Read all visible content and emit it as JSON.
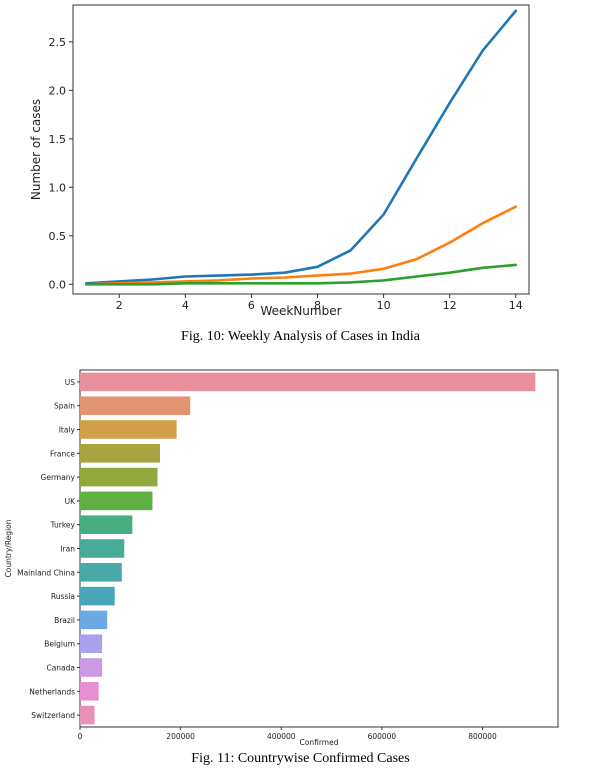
{
  "figures": [
    {
      "caption": "Fig. 10: Weekly Analysis of Cases in India"
    },
    {
      "caption": "Fig. 11: Countrywise Confirmed Cases"
    }
  ],
  "chart_data": [
    {
      "type": "line",
      "xlabel": "WeekNumber",
      "ylabel": "Number of cases",
      "x": [
        1,
        2,
        3,
        4,
        5,
        6,
        7,
        8,
        9,
        10,
        11,
        12,
        13,
        14
      ],
      "xlim": [
        0.6,
        14.4
      ],
      "ylim": [
        -0.1,
        2.88
      ],
      "xticks": [
        2,
        4,
        6,
        8,
        10,
        12,
        14
      ],
      "yticks": [
        0.0,
        0.5,
        1.0,
        1.5,
        2.0,
        2.5
      ],
      "grid": false,
      "series": [
        {
          "color": "#1f77b4",
          "values": [
            0.01,
            0.03,
            0.05,
            0.08,
            0.09,
            0.1,
            0.12,
            0.18,
            0.35,
            0.72,
            1.3,
            1.87,
            2.41,
            2.82
          ]
        },
        {
          "color": "#ff7f0e",
          "values": [
            0.0,
            0.01,
            0.02,
            0.03,
            0.04,
            0.06,
            0.07,
            0.09,
            0.11,
            0.16,
            0.26,
            0.43,
            0.63,
            0.8
          ]
        },
        {
          "color": "#2ca02c",
          "values": [
            0.0,
            0.0,
            0.0,
            0.01,
            0.01,
            0.01,
            0.01,
            0.01,
            0.02,
            0.04,
            0.08,
            0.12,
            0.17,
            0.2
          ]
        }
      ]
    },
    {
      "type": "bar",
      "orientation": "horizontal",
      "xlabel": "Confirmed",
      "ylabel": "Country/Region",
      "xlim": [
        0,
        950000
      ],
      "xticks": [
        0,
        200000,
        400000,
        600000,
        800000
      ],
      "grid": false,
      "categories": [
        "US",
        "Spain",
        "Italy",
        "France",
        "Germany",
        "UK",
        "Turkey",
        "Iran",
        "Mainland China",
        "Russia",
        "Brazil",
        "Belgium",
        "Canada",
        "Netherlands",
        "Switzerland"
      ],
      "values": [
        905000,
        219000,
        192000,
        159000,
        154000,
        144000,
        104000,
        88000,
        83000,
        69000,
        54000,
        44000,
        44000,
        37000,
        29000
      ],
      "colors": [
        "#e8919c",
        "#e49472",
        "#d09f48",
        "#a9a43f",
        "#92a83c",
        "#5faf43",
        "#45ad7e",
        "#46ab97",
        "#47a8a8",
        "#49a6b9",
        "#6aa9e4",
        "#a8a1ec",
        "#cc99e4",
        "#e78ed4",
        "#e891b6"
      ]
    }
  ]
}
